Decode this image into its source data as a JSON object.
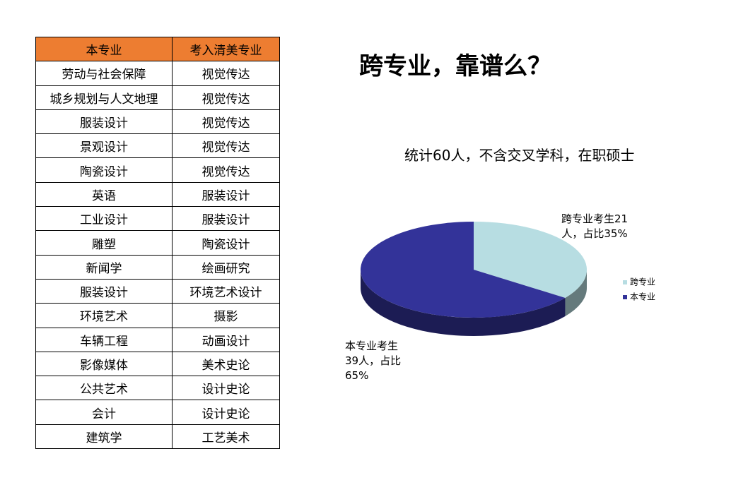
{
  "table": {
    "header": [
      "本专业",
      "考入清美专业"
    ],
    "rows": [
      [
        "劳动与社会保障",
        "视觉传达"
      ],
      [
        "城乡规划与人文地理",
        "视觉传达"
      ],
      [
        "服装设计",
        "视觉传达"
      ],
      [
        "景观设计",
        "视觉传达"
      ],
      [
        "陶瓷设计",
        "视觉传达"
      ],
      [
        "英语",
        "服装设计"
      ],
      [
        "工业设计",
        "服装设计"
      ],
      [
        "雕塑",
        "陶瓷设计"
      ],
      [
        "新闻学",
        "绘画研究"
      ],
      [
        "服装设计",
        "环境艺术设计"
      ],
      [
        "环境艺术",
        "摄影"
      ],
      [
        "车辆工程",
        "动画设计"
      ],
      [
        "影像媒体",
        "美术史论"
      ],
      [
        "公共艺术",
        "设计史论"
      ],
      [
        "会计",
        "设计史论"
      ],
      [
        "建筑学",
        "工艺美术"
      ]
    ]
  },
  "chart_data": {
    "type": "pie",
    "title": "跨专业，靠谱么？",
    "subtitle": "统计60人，不含交叉学科，在职硕士",
    "categories": [
      "跨专业",
      "本专业"
    ],
    "values": [
      35,
      65
    ],
    "value_labels": [
      "跨专业考生21人，占比35%",
      "本专业考生39人，占比65%"
    ],
    "colors": [
      "#b7dde2",
      "#333399"
    ],
    "legend": "right"
  }
}
